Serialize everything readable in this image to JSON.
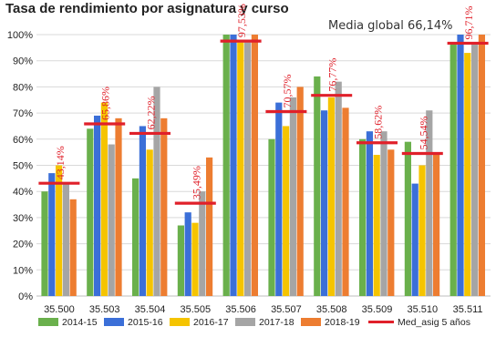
{
  "chart_data": {
    "type": "bar",
    "categories": [
      "35.500",
      "35.503",
      "35.504",
      "35.505",
      "35.506",
      "35.507",
      "35.508",
      "35.509",
      "35.510",
      "35.511"
    ],
    "series": [
      {
        "name": "2014-15",
        "color": "#6ab04c",
        "values": [
          40,
          64,
          45,
          27,
          100,
          60,
          84,
          60,
          59,
          97
        ]
      },
      {
        "name": "2015-16",
        "color": "#3b6fd8",
        "values": [
          47,
          69,
          65,
          32,
          100,
          74,
          71,
          63,
          43,
          100
        ]
      },
      {
        "name": "2016-17",
        "color": "#f5c400",
        "values": [
          50,
          74,
          56,
          28,
          97,
          65,
          76,
          54,
          50,
          93
        ]
      },
      {
        "name": "2017-18",
        "color": "#a5a5a5",
        "values": [
          43,
          58,
          80,
          40,
          97,
          76,
          82,
          63,
          71,
          97
        ]
      },
      {
        "name": "2018-19",
        "color": "#ed7d31",
        "values": [
          37,
          68,
          68,
          53,
          100,
          80,
          72,
          56,
          54,
          100
        ]
      }
    ],
    "averages": {
      "name": "Med_asig 5 años",
      "color": "#e0202a",
      "values": [
        43.14,
        65.86,
        62.22,
        35.49,
        97.53,
        70.57,
        76.77,
        58.62,
        54.54,
        96.71
      ],
      "labels": [
        "43,14%",
        "65,86%",
        "62,22%",
        "35,49%",
        "97,53%",
        "70,57%",
        "76,77%",
        "58,62%",
        "54,54%",
        "96,71%"
      ]
    },
    "yticks": [
      "0%",
      "10%",
      "20%",
      "30%",
      "40%",
      "50%",
      "60%",
      "70%",
      "80%",
      "90%",
      "100%"
    ],
    "ylim": [
      0,
      100
    ],
    "grid": true,
    "legend_position": "bottom",
    "annotation": "Media global 66,14%",
    "top_text": "Tasa de rendimiento por asignatura y curso"
  }
}
